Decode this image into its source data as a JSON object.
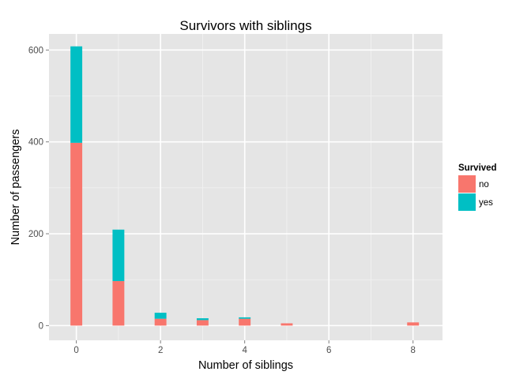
{
  "chart_data": {
    "type": "bar",
    "stacked": true,
    "title": "Survivors with siblings",
    "xlabel": "Number of siblings",
    "ylabel": "Number of passengers",
    "xlim": [
      -0.65,
      8.7
    ],
    "ylim": [
      -32,
      635
    ],
    "x_ticks": [
      0,
      2,
      4,
      6,
      8
    ],
    "y_ticks": [
      0,
      200,
      400,
      600
    ],
    "x": [
      0,
      1,
      2,
      3,
      4,
      5,
      8
    ],
    "bar_width": 0.28,
    "series": [
      {
        "name": "no",
        "color": "#F8766D",
        "values": [
          398,
          97,
          15,
          12,
          15,
          5,
          7
        ]
      },
      {
        "name": "yes",
        "color": "#00BFC4",
        "values": [
          210,
          112,
          13,
          4,
          3,
          0,
          0
        ]
      }
    ],
    "legend": {
      "title": "Survived",
      "position": "right"
    },
    "grid": true,
    "panel_background": "#E5E5E5"
  }
}
